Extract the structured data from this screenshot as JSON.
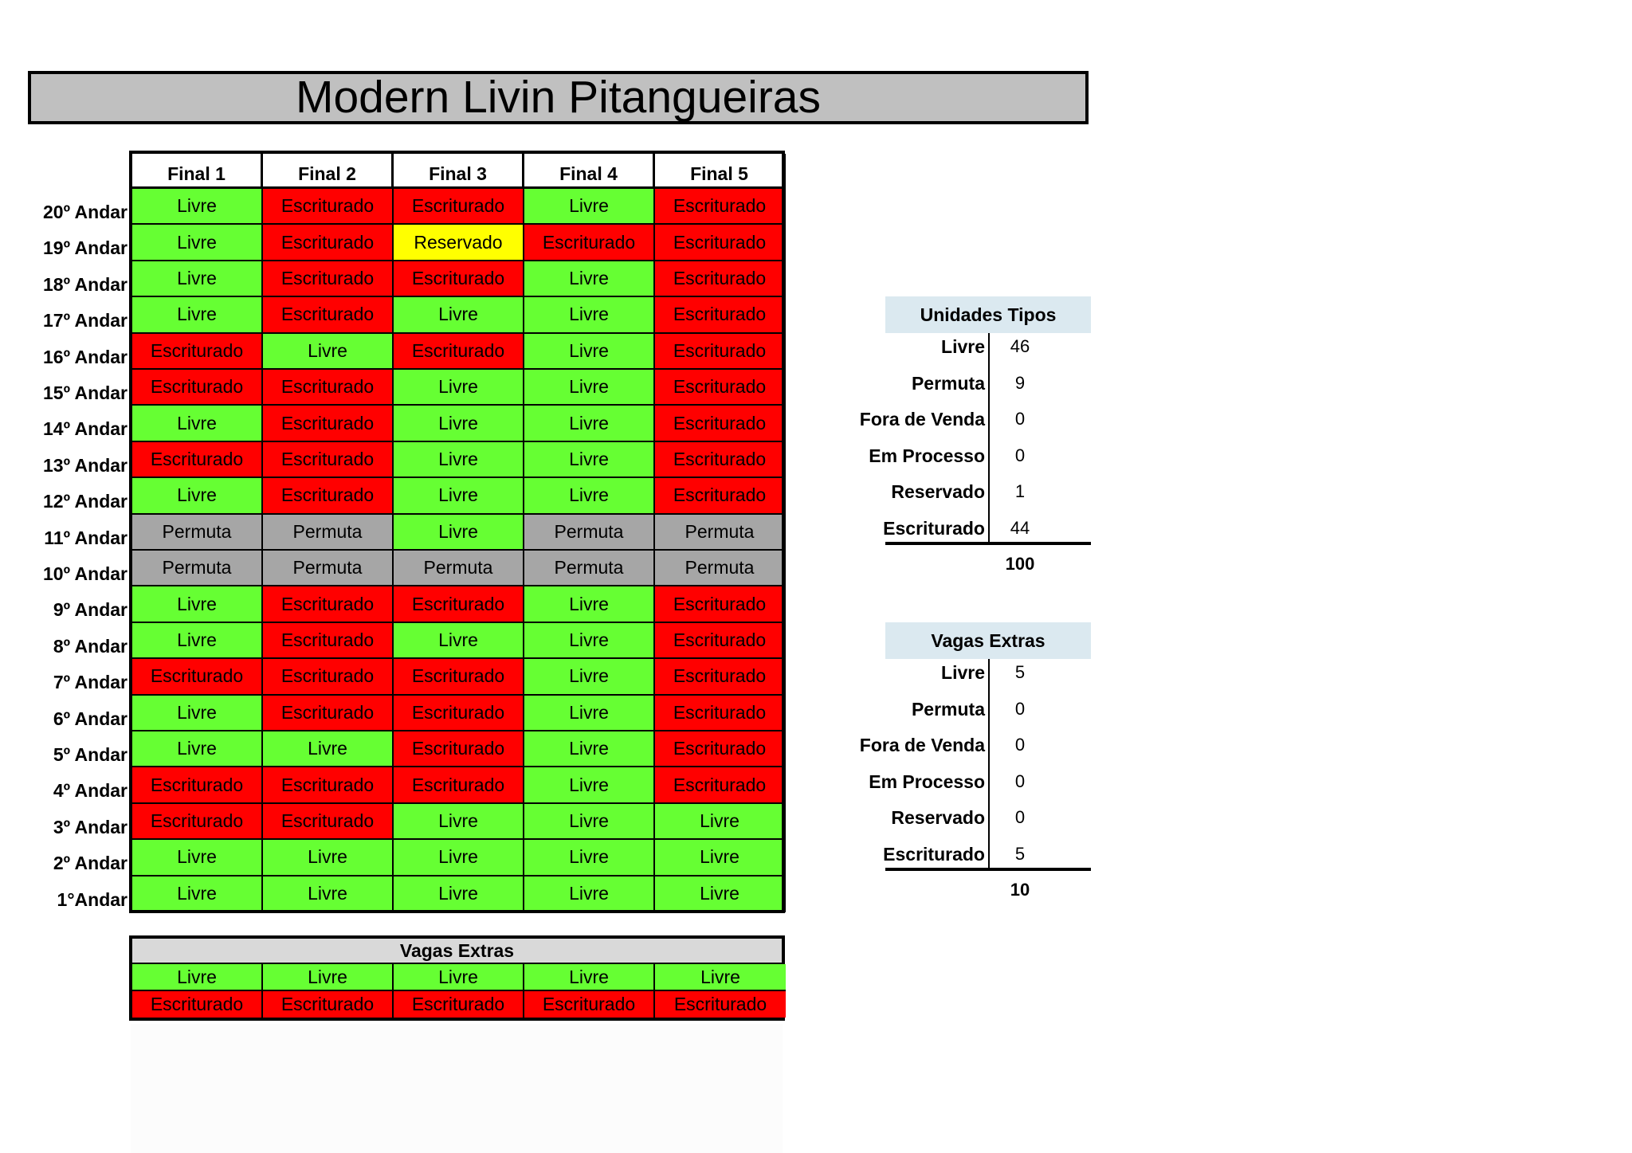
{
  "title": "Modern Livin Pitangueiras",
  "columns": [
    "Final 1",
    "Final 2",
    "Final 3",
    "Final 4",
    "Final 5"
  ],
  "floors": [
    {
      "label": "20º Andar",
      "units": [
        "Livre",
        "Escriturado",
        "Escriturado",
        "Livre",
        "Escriturado"
      ]
    },
    {
      "label": "19º Andar",
      "units": [
        "Livre",
        "Escriturado",
        "Reservado",
        "Escriturado",
        "Escriturado"
      ]
    },
    {
      "label": "18º Andar",
      "units": [
        "Livre",
        "Escriturado",
        "Escriturado",
        "Livre",
        "Escriturado"
      ]
    },
    {
      "label": "17º Andar",
      "units": [
        "Livre",
        "Escriturado",
        "Livre",
        "Livre",
        "Escriturado"
      ]
    },
    {
      "label": "16º Andar",
      "units": [
        "Escriturado",
        "Livre",
        "Escriturado",
        "Livre",
        "Escriturado"
      ]
    },
    {
      "label": "15º Andar",
      "units": [
        "Escriturado",
        "Escriturado",
        "Livre",
        "Livre",
        "Escriturado"
      ]
    },
    {
      "label": "14º Andar",
      "units": [
        "Livre",
        "Escriturado",
        "Livre",
        "Livre",
        "Escriturado"
      ]
    },
    {
      "label": "13º Andar",
      "units": [
        "Escriturado",
        "Escriturado",
        "Livre",
        "Livre",
        "Escriturado"
      ]
    },
    {
      "label": "12º Andar",
      "units": [
        "Livre",
        "Escriturado",
        "Livre",
        "Livre",
        "Escriturado"
      ]
    },
    {
      "label": "11º Andar",
      "units": [
        "Permuta",
        "Permuta",
        "Livre",
        "Permuta",
        "Permuta"
      ]
    },
    {
      "label": "10º Andar",
      "units": [
        "Permuta",
        "Permuta",
        "Permuta",
        "Permuta",
        "Permuta"
      ]
    },
    {
      "label": "9º Andar",
      "units": [
        "Livre",
        "Escriturado",
        "Escriturado",
        "Livre",
        "Escriturado"
      ]
    },
    {
      "label": "8º Andar",
      "units": [
        "Livre",
        "Escriturado",
        "Livre",
        "Livre",
        "Escriturado"
      ]
    },
    {
      "label": "7º Andar",
      "units": [
        "Escriturado",
        "Escriturado",
        "Escriturado",
        "Livre",
        "Escriturado"
      ]
    },
    {
      "label": "6º Andar",
      "units": [
        "Livre",
        "Escriturado",
        "Escriturado",
        "Livre",
        "Escriturado"
      ]
    },
    {
      "label": "5º Andar",
      "units": [
        "Livre",
        "Livre",
        "Escriturado",
        "Livre",
        "Escriturado"
      ]
    },
    {
      "label": "4º Andar",
      "units": [
        "Escriturado",
        "Escriturado",
        "Escriturado",
        "Livre",
        "Escriturado"
      ]
    },
    {
      "label": "3º Andar",
      "units": [
        "Escriturado",
        "Escriturado",
        "Livre",
        "Livre",
        "Livre"
      ]
    },
    {
      "label": "2º Andar",
      "units": [
        "Livre",
        "Livre",
        "Livre",
        "Livre",
        "Livre"
      ]
    },
    {
      "label": "1°Andar",
      "units": [
        "Livre",
        "Livre",
        "Livre",
        "Livre",
        "Livre"
      ]
    }
  ],
  "vagas_extras_table": {
    "title": "Vagas Extras",
    "rows": [
      [
        "Livre",
        "Livre",
        "Livre",
        "Livre",
        "Livre"
      ],
      [
        "Escriturado",
        "Escriturado",
        "Escriturado",
        "Escriturado",
        "Escriturado"
      ]
    ]
  },
  "status_colors": {
    "Livre": "#66ff33",
    "Escriturado": "#ff0000",
    "Reservado": "#ffff00",
    "Permuta": "#a6a6a6"
  },
  "summary_units": {
    "title": "Unidades Tipos",
    "rows": [
      {
        "label": "Livre",
        "value": "46"
      },
      {
        "label": "Permuta",
        "value": "9"
      },
      {
        "label": "Fora de Venda",
        "value": "0"
      },
      {
        "label": "Em Processo",
        "value": "0"
      },
      {
        "label": "Reservado",
        "value": "1"
      },
      {
        "label": "Escriturado",
        "value": "44"
      }
    ],
    "total": "100"
  },
  "summary_vagas": {
    "title": "Vagas Extras",
    "rows": [
      {
        "label": "Livre",
        "value": "5"
      },
      {
        "label": "Permuta",
        "value": "0"
      },
      {
        "label": "Fora de Venda",
        "value": "0"
      },
      {
        "label": "Em Processo",
        "value": "0"
      },
      {
        "label": "Reservado",
        "value": "0"
      },
      {
        "label": "Escriturado",
        "value": "5"
      }
    ],
    "total": "10"
  }
}
